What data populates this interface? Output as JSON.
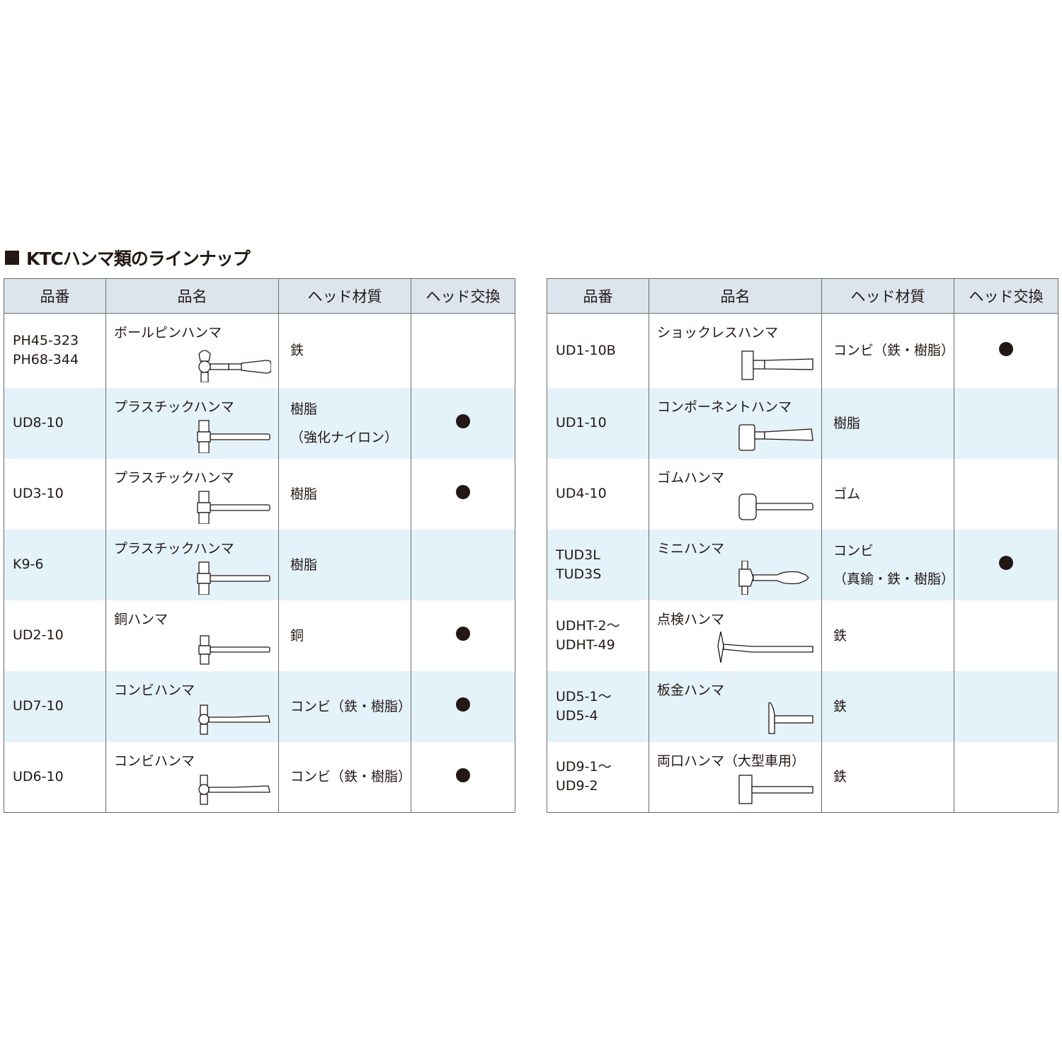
{
  "title": "KTCハンマ類のラインナップ",
  "headers": [
    "品番",
    "品名",
    "ヘッド材質",
    "ヘッド交換"
  ],
  "left_table": [
    {
      "part_no": [
        "PH45-323",
        "PH68-344"
      ],
      "name": "ボールピンハンマ",
      "icon": "ball-pein-hammer-icon",
      "material": [
        "鉄"
      ],
      "head_replaceable": false
    },
    {
      "part_no": [
        "UD8-10"
      ],
      "name": "プラスチックハンマ",
      "icon": "plastic-hammer-icon",
      "material": [
        "樹脂",
        "（強化ナイロン）"
      ],
      "head_replaceable": true
    },
    {
      "part_no": [
        "UD3-10"
      ],
      "name": "プラスチックハンマ",
      "icon": "plastic-hammer-icon",
      "material": [
        "樹脂"
      ],
      "head_replaceable": true
    },
    {
      "part_no": [
        "K9-6"
      ],
      "name": "プラスチックハンマ",
      "icon": "plastic-hammer-icon",
      "material": [
        "樹脂"
      ],
      "head_replaceable": false
    },
    {
      "part_no": [
        "UD2-10"
      ],
      "name": "銅ハンマ",
      "icon": "copper-hammer-icon",
      "material": [
        "銅"
      ],
      "head_replaceable": true
    },
    {
      "part_no": [
        "UD7-10"
      ],
      "name": "コンビハンマ",
      "icon": "combination-hammer-icon",
      "material": [
        "コンビ（鉄・樹脂）"
      ],
      "head_replaceable": true
    },
    {
      "part_no": [
        "UD6-10"
      ],
      "name": "コンビハンマ",
      "icon": "combination-hammer-icon",
      "material": [
        "コンビ（鉄・樹脂）"
      ],
      "head_replaceable": true
    }
  ],
  "right_table": [
    {
      "part_no": [
        "UD1-10B"
      ],
      "name": "ショックレスハンマ",
      "icon": "shockless-hammer-icon",
      "material": [
        "コンビ（鉄・樹脂）"
      ],
      "head_replaceable": true
    },
    {
      "part_no": [
        "UD1-10"
      ],
      "name": "コンポーネントハンマ",
      "icon": "component-hammer-icon",
      "material": [
        "樹脂"
      ],
      "head_replaceable": false
    },
    {
      "part_no": [
        "UD4-10"
      ],
      "name": "ゴムハンマ",
      "icon": "rubber-hammer-icon",
      "material": [
        "ゴム"
      ],
      "head_replaceable": false
    },
    {
      "part_no": [
        "TUD3L",
        "TUD3S"
      ],
      "name": "ミニハンマ",
      "icon": "mini-hammer-icon",
      "material": [
        "コンビ",
        "（真鍮・鉄・樹脂）"
      ],
      "head_replaceable": true
    },
    {
      "part_no": [
        "UDHT-2～",
        "UDHT-49"
      ],
      "name": "点検ハンマ",
      "icon": "inspection-hammer-icon",
      "material": [
        "鉄"
      ],
      "head_replaceable": false
    },
    {
      "part_no": [
        "UD5-1～",
        "UD5-4"
      ],
      "name": "板金ハンマ",
      "icon": "sheet-metal-hammer-icon",
      "material": [
        "鉄"
      ],
      "head_replaceable": false
    },
    {
      "part_no": [
        "UD9-1～",
        "UD9-2"
      ],
      "name": "両口ハンマ（大型車用）",
      "icon": "double-face-hammer-icon",
      "material": [
        "鉄"
      ],
      "head_replaceable": false
    }
  ],
  "replaceable_mark": "●"
}
